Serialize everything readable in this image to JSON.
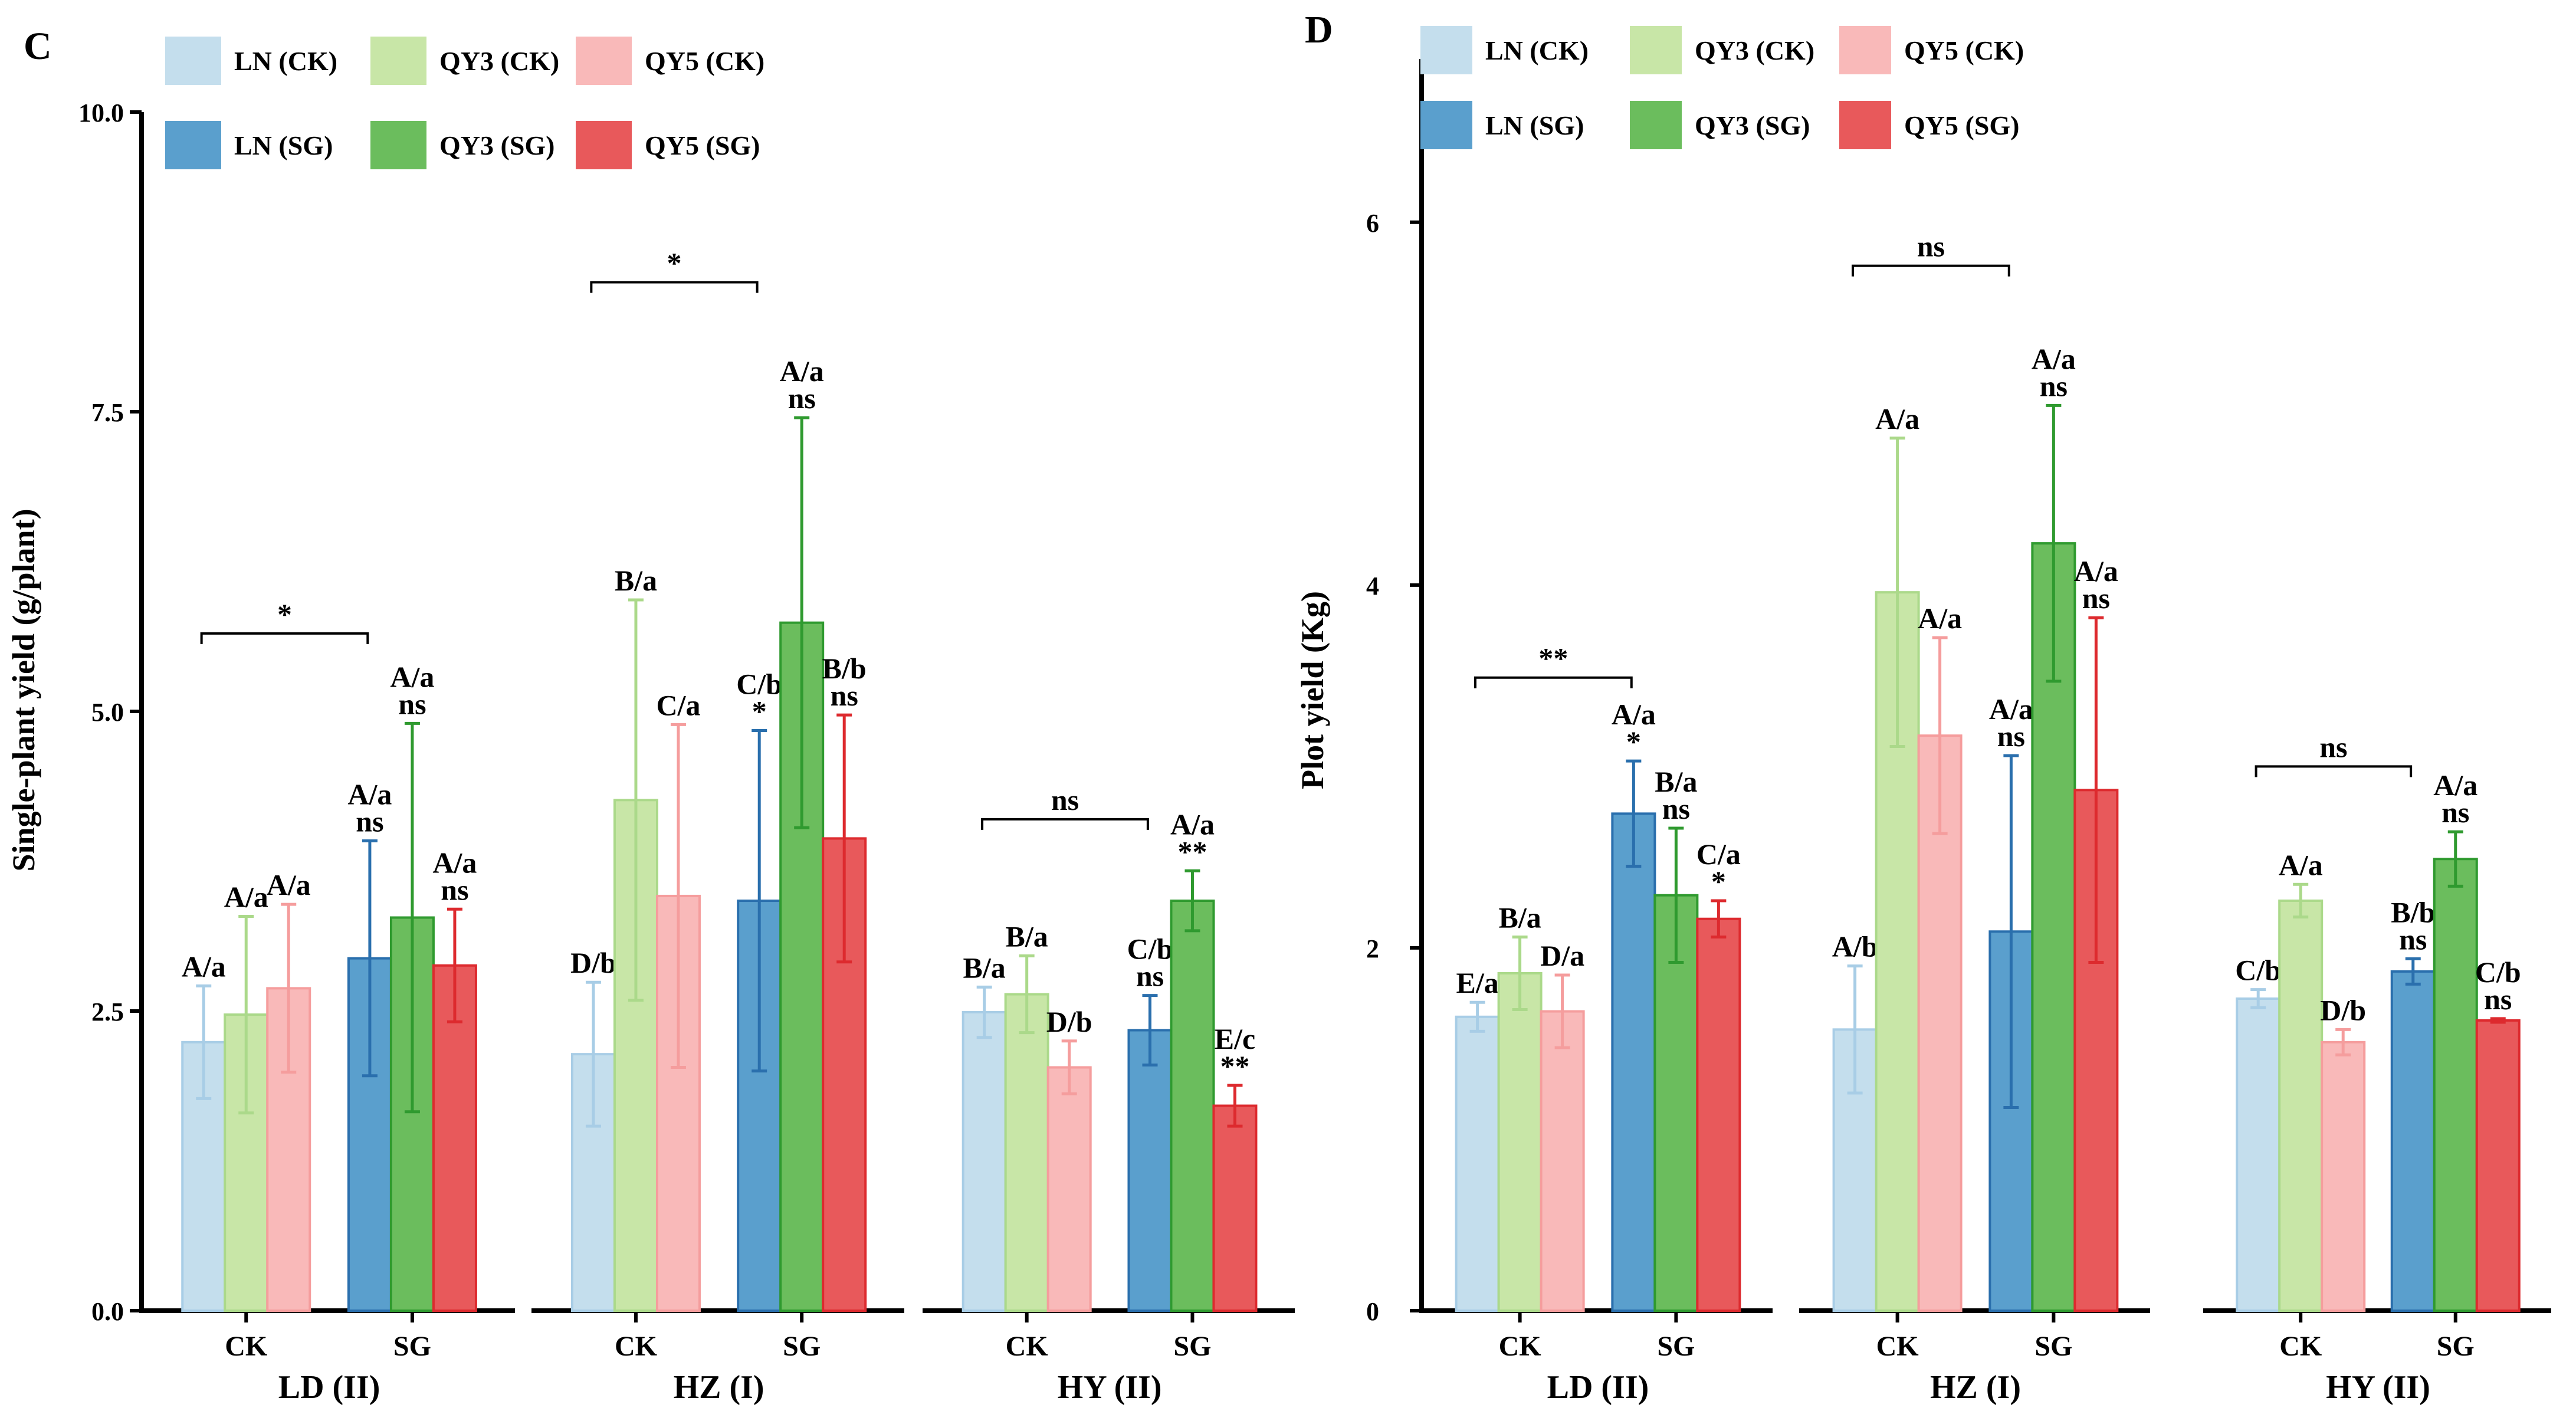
{
  "colors": {
    "LN (CK)": "#c4deed",
    "QY3 (CK)": "#c8e6a7",
    "QY5 (CK)": "#f9b9b9",
    "LN (SG)": "#5a9fcd",
    "QY3 (SG)": "#6bbd5d",
    "QY5 (SG)": "#e8595b",
    "LN (CK)_edge": "#a8cde6",
    "QY3 (CK)_edge": "#abd98a",
    "QY5 (CK)_edge": "#f59d9d",
    "LN (SG)_edge": "#2a6fad",
    "QY3 (SG)_edge": "#2f9a2f",
    "QY5 (SG)_edge": "#dd2a2e"
  },
  "chart_data": [
    {
      "panel_label": "C",
      "type": "bar",
      "ylabel": "Single-plant yield (g/plant)",
      "ylim": [
        0,
        10
      ],
      "yticks": [
        "0.0",
        "2.5",
        "5.0",
        "7.5",
        "10.0"
      ],
      "ytick_values": [
        0,
        2.5,
        5,
        7.5,
        10
      ],
      "legend": [
        [
          "LN (CK)",
          "QY3 (CK)",
          "QY5 (CK)"
        ],
        [
          "LN (SG)",
          "QY3 (SG)",
          "QY5 (SG)"
        ]
      ],
      "facets": [
        {
          "name": "LD (II)",
          "groups": [
            {
              "label": "CK",
              "bars": [
                {
                  "series": "LN (CK)",
                  "value": 2.24,
                  "err": 0.47,
                  "label": "A/a",
                  "sig": ""
                },
                {
                  "series": "QY3 (CK)",
                  "value": 2.47,
                  "err": 0.82,
                  "label": "A/a",
                  "sig": ""
                },
                {
                  "series": "QY5 (CK)",
                  "value": 2.69,
                  "err": 0.7,
                  "label": "A/a",
                  "sig": ""
                }
              ]
            },
            {
              "label": "SG",
              "bars": [
                {
                  "series": "LN (SG)",
                  "value": 2.94,
                  "err": 0.98,
                  "label": "A/a",
                  "sig": "ns"
                },
                {
                  "series": "QY3 (SG)",
                  "value": 3.28,
                  "err": 1.62,
                  "label": "A/a",
                  "sig": "ns"
                },
                {
                  "series": "QY5 (SG)",
                  "value": 2.88,
                  "err": 0.47,
                  "label": "A/a",
                  "sig": "ns"
                }
              ]
            }
          ],
          "bracket": "*",
          "bracket_y": 5.65
        },
        {
          "name": "HZ (I)",
          "groups": [
            {
              "label": "CK",
              "bars": [
                {
                  "series": "LN (CK)",
                  "value": 2.14,
                  "err": 0.6,
                  "label": "D/b",
                  "sig": ""
                },
                {
                  "series": "QY3 (CK)",
                  "value": 4.26,
                  "err": 1.67,
                  "label": "B/a",
                  "sig": ""
                },
                {
                  "series": "QY5 (CK)",
                  "value": 3.46,
                  "err": 1.43,
                  "label": "C/a",
                  "sig": ""
                }
              ]
            },
            {
              "label": "SG",
              "bars": [
                {
                  "series": "LN (SG)",
                  "value": 3.42,
                  "err": 1.42,
                  "label": "C/b",
                  "sig": "*"
                },
                {
                  "series": "QY3 (SG)",
                  "value": 5.74,
                  "err": 1.71,
                  "label": "A/a",
                  "sig": "ns"
                },
                {
                  "series": "QY5 (SG)",
                  "value": 3.94,
                  "err": 1.03,
                  "label": "B/b",
                  "sig": "ns"
                }
              ]
            }
          ],
          "bracket": "*",
          "bracket_y": 8.58
        },
        {
          "name": "HY (II)",
          "groups": [
            {
              "label": "CK",
              "bars": [
                {
                  "series": "LN (CK)",
                  "value": 2.49,
                  "err": 0.21,
                  "label": "B/a",
                  "sig": ""
                },
                {
                  "series": "QY3 (CK)",
                  "value": 2.64,
                  "err": 0.32,
                  "label": "B/a",
                  "sig": ""
                },
                {
                  "series": "QY5 (CK)",
                  "value": 2.03,
                  "err": 0.22,
                  "label": "D/b",
                  "sig": ""
                }
              ]
            },
            {
              "label": "SG",
              "bars": [
                {
                  "series": "LN (SG)",
                  "value": 2.34,
                  "err": 0.29,
                  "label": "C/b",
                  "sig": "ns"
                },
                {
                  "series": "QY3 (SG)",
                  "value": 3.42,
                  "err": 0.25,
                  "label": "A/a",
                  "sig": "**"
                },
                {
                  "series": "QY5 (SG)",
                  "value": 1.71,
                  "err": 0.17,
                  "label": "E/c",
                  "sig": "**"
                }
              ]
            }
          ],
          "bracket": "ns",
          "bracket_y": 4.1
        }
      ]
    },
    {
      "panel_label": "D",
      "type": "bar",
      "ylabel": "Plot yield (Kg)",
      "ylim": [
        0,
        6.9
      ],
      "yticks": [
        "0",
        "2",
        "4",
        "6"
      ],
      "ytick_values": [
        0,
        2,
        4,
        6
      ],
      "legend": [
        [
          "LN (CK)",
          "QY3 (CK)",
          "QY5 (CK)"
        ],
        [
          "LN (SG)",
          "QY3 (SG)",
          "QY5 (SG)"
        ]
      ],
      "facets": [
        {
          "name": "LD (II)",
          "groups": [
            {
              "label": "CK",
              "bars": [
                {
                  "series": "LN (CK)",
                  "value": 1.62,
                  "err": 0.08,
                  "label": "E/a",
                  "sig": ""
                },
                {
                  "series": "QY3 (CK)",
                  "value": 1.86,
                  "err": 0.2,
                  "label": "B/a",
                  "sig": ""
                },
                {
                  "series": "QY5 (CK)",
                  "value": 1.65,
                  "err": 0.2,
                  "label": "D/a",
                  "sig": ""
                }
              ]
            },
            {
              "label": "SG",
              "bars": [
                {
                  "series": "LN (SG)",
                  "value": 2.74,
                  "err": 0.29,
                  "label": "A/a",
                  "sig": "*"
                },
                {
                  "series": "QY3 (SG)",
                  "value": 2.29,
                  "err": 0.37,
                  "label": "B/a",
                  "sig": "ns"
                },
                {
                  "series": "QY5 (SG)",
                  "value": 2.16,
                  "err": 0.1,
                  "label": "C/a",
                  "sig": "*"
                }
              ]
            }
          ],
          "bracket": "**",
          "bracket_y": 3.49
        },
        {
          "name": "HZ (I)",
          "groups": [
            {
              "label": "CK",
              "bars": [
                {
                  "series": "LN (CK)",
                  "value": 1.55,
                  "err": 0.35,
                  "label": "A/b",
                  "sig": ""
                },
                {
                  "series": "QY3 (CK)",
                  "value": 3.96,
                  "err": 0.85,
                  "label": "A/a",
                  "sig": ""
                },
                {
                  "series": "QY5 (CK)",
                  "value": 3.17,
                  "err": 0.54,
                  "label": "A/a",
                  "sig": ""
                }
              ]
            },
            {
              "label": "SG",
              "bars": [
                {
                  "series": "LN (SG)",
                  "value": 2.09,
                  "err": 0.97,
                  "label": "A/a",
                  "sig": "ns"
                },
                {
                  "series": "QY3 (SG)",
                  "value": 4.23,
                  "err": 0.76,
                  "label": "A/a",
                  "sig": "ns"
                },
                {
                  "series": "QY5 (SG)",
                  "value": 2.87,
                  "err": 0.95,
                  "label": "A/a",
                  "sig": "ns"
                }
              ]
            }
          ],
          "bracket": "ns",
          "bracket_y": 5.76
        },
        {
          "name": "HY (II)",
          "groups": [
            {
              "label": "CK",
              "bars": [
                {
                  "series": "LN (CK)",
                  "value": 1.72,
                  "err": 0.05,
                  "label": "C/b",
                  "sig": ""
                },
                {
                  "series": "QY3 (CK)",
                  "value": 2.26,
                  "err": 0.09,
                  "label": "A/a",
                  "sig": ""
                },
                {
                  "series": "QY5 (CK)",
                  "value": 1.48,
                  "err": 0.07,
                  "label": "D/b",
                  "sig": ""
                }
              ]
            },
            {
              "label": "SG",
              "bars": [
                {
                  "series": "LN (SG)",
                  "value": 1.87,
                  "err": 0.07,
                  "label": "B/b",
                  "sig": "ns"
                },
                {
                  "series": "QY3 (SG)",
                  "value": 2.49,
                  "err": 0.15,
                  "label": "A/a",
                  "sig": "ns"
                },
                {
                  "series": "QY5 (SG)",
                  "value": 1.6,
                  "err": 0.01,
                  "label": "C/b",
                  "sig": "ns"
                }
              ]
            }
          ],
          "bracket": "ns",
          "bracket_y": 3.0
        }
      ]
    }
  ]
}
